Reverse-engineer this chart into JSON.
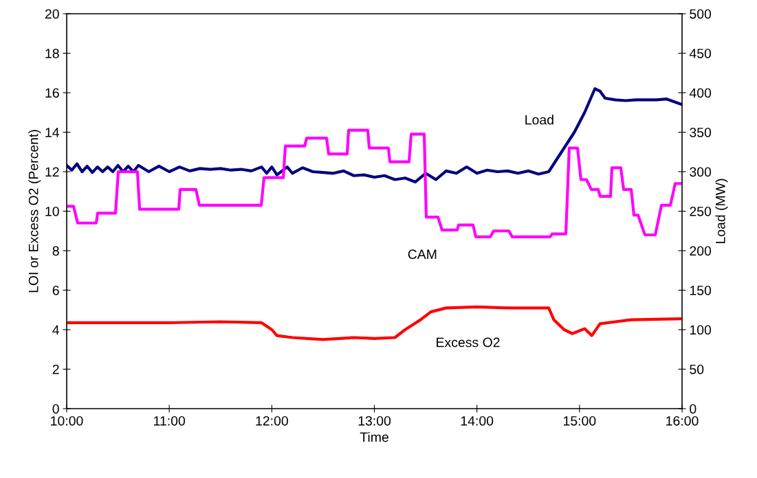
{
  "chart_data": {
    "type": "line",
    "xlabel": "Time",
    "ylabel": "LOI or Excess O2 (Percent)",
    "y2label": "Load (MW)",
    "xlim": [
      10,
      16
    ],
    "xticks": [
      {
        "value": 10,
        "label": "10:00"
      },
      {
        "value": 11,
        "label": "11:00"
      },
      {
        "value": 12,
        "label": "12:00"
      },
      {
        "value": 13,
        "label": "13:00"
      },
      {
        "value": 14,
        "label": "14:00"
      },
      {
        "value": 15,
        "label": "15:00"
      },
      {
        "value": 16,
        "label": "16:00"
      }
    ],
    "ylim": [
      0,
      20
    ],
    "yticks": [
      0,
      2,
      4,
      6,
      8,
      10,
      12,
      14,
      16,
      18,
      20
    ],
    "y2lim": [
      0,
      500
    ],
    "y2ticks": [
      0,
      50,
      100,
      150,
      200,
      250,
      300,
      350,
      400,
      450,
      500
    ],
    "grid": false,
    "legend": false,
    "marker": "none",
    "line_style": "solid",
    "series": [
      {
        "name": "Load",
        "color": "#000080",
        "axis": "y2",
        "x": [
          10.0,
          10.05,
          10.1,
          10.15,
          10.2,
          10.25,
          10.3,
          10.35,
          10.4,
          10.45,
          10.5,
          10.55,
          10.6,
          10.65,
          10.7,
          10.8,
          10.9,
          11.0,
          11.1,
          11.2,
          11.3,
          11.4,
          11.5,
          11.6,
          11.7,
          11.8,
          11.9,
          11.95,
          12.0,
          12.05,
          12.15,
          12.2,
          12.3,
          12.4,
          12.5,
          12.6,
          12.7,
          12.8,
          12.9,
          13.0,
          13.1,
          13.2,
          13.3,
          13.4,
          13.5,
          13.6,
          13.7,
          13.8,
          13.9,
          14.0,
          14.1,
          14.2,
          14.3,
          14.4,
          14.5,
          14.6,
          14.7,
          14.75,
          14.85,
          14.95,
          15.05,
          15.15,
          15.2,
          15.25,
          15.35,
          15.45,
          15.55,
          15.65,
          15.75,
          15.85,
          16.0
        ],
        "values": [
          308,
          302,
          310,
          300,
          307,
          299,
          306,
          300,
          306,
          300,
          308,
          300,
          307,
          300,
          308,
          300,
          307,
          300,
          306,
          301,
          304,
          303,
          304,
          302,
          303,
          301,
          306,
          298,
          306,
          296,
          306,
          298,
          305,
          300,
          299,
          298,
          301,
          295,
          296,
          293,
          295,
          290,
          292,
          287,
          298,
          290,
          301,
          298,
          306,
          298,
          302,
          300,
          301,
          298,
          301,
          297,
          300,
          310,
          330,
          350,
          375,
          405,
          402,
          393,
          391,
          390,
          391,
          391,
          391,
          392,
          385
        ]
      },
      {
        "name": "CAM",
        "color": "#ff00ff",
        "x": [
          10.0,
          10.067,
          10.107,
          10.288,
          10.302,
          10.476,
          10.503,
          10.69,
          10.711,
          11.093,
          11.106,
          11.26,
          11.294,
          11.897,
          11.924,
          12.112,
          12.132,
          12.32,
          12.34,
          12.534,
          12.554,
          12.735,
          12.749,
          12.936,
          12.95,
          13.137,
          13.151,
          13.338,
          13.359,
          13.486,
          13.506,
          13.62,
          13.66,
          13.808,
          13.821,
          13.962,
          13.989,
          14.13,
          14.163,
          14.311,
          14.344,
          14.713,
          14.733,
          14.867,
          14.9,
          14.981,
          15.014,
          15.068,
          15.115,
          15.182,
          15.202,
          15.303,
          15.316,
          15.403,
          15.43,
          15.504,
          15.531,
          15.571,
          15.638,
          15.739,
          15.799,
          15.886,
          15.933,
          16.0
        ],
        "values": [
          10.25,
          10.25,
          9.4,
          9.4,
          9.9,
          9.9,
          12.0,
          12.0,
          10.1,
          10.1,
          11.1,
          11.1,
          10.3,
          10.3,
          11.7,
          11.7,
          13.3,
          13.3,
          13.7,
          13.7,
          12.9,
          12.9,
          14.1,
          14.1,
          13.2,
          13.2,
          12.5,
          12.5,
          13.9,
          13.9,
          9.7,
          9.7,
          9.05,
          9.05,
          9.3,
          9.3,
          8.7,
          8.7,
          9.0,
          9.0,
          8.7,
          8.7,
          8.85,
          8.85,
          13.2,
          13.2,
          11.6,
          11.6,
          11.1,
          11.1,
          10.75,
          10.75,
          12.2,
          12.2,
          11.1,
          11.1,
          9.8,
          9.8,
          8.8,
          8.8,
          10.3,
          10.3,
          11.4,
          11.4
        ]
      },
      {
        "name": "Excess O2",
        "color": "#ff0000",
        "x": [
          10.0,
          10.5,
          11.0,
          11.5,
          11.9,
          12.0,
          12.05,
          12.2,
          12.5,
          12.8,
          13.0,
          13.2,
          13.3,
          13.45,
          13.55,
          13.7,
          14.0,
          14.3,
          14.7,
          14.75,
          14.85,
          14.93,
          15.05,
          15.12,
          15.2,
          15.35,
          15.5,
          16.0
        ],
        "values": [
          4.35,
          4.35,
          4.35,
          4.4,
          4.35,
          4.0,
          3.7,
          3.6,
          3.5,
          3.6,
          3.55,
          3.6,
          4.0,
          4.5,
          4.9,
          5.1,
          5.15,
          5.1,
          5.1,
          4.5,
          4.0,
          3.8,
          4.05,
          3.7,
          4.3,
          4.4,
          4.5,
          4.55
        ]
      }
    ]
  }
}
